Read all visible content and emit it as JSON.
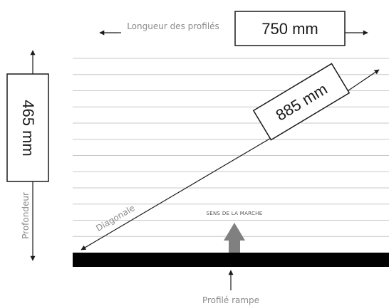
{
  "length": {
    "label": "Longueur des profilés",
    "value": "750 mm"
  },
  "depth": {
    "label": "Profondeur",
    "value": "465 mm"
  },
  "diagonal": {
    "label": "Diagonale",
    "value": "885 mm"
  },
  "walk_direction": {
    "label": "SENS DE LA MARCHE"
  },
  "ramp_profile": {
    "label": "Profilé rampe"
  },
  "colors": {
    "line": "#1a1a1a",
    "slat_line": "#c8c8c8",
    "label_grey": "#8a8a8a",
    "arrow_grey": "#808080",
    "ramp_bar": "#000000"
  }
}
